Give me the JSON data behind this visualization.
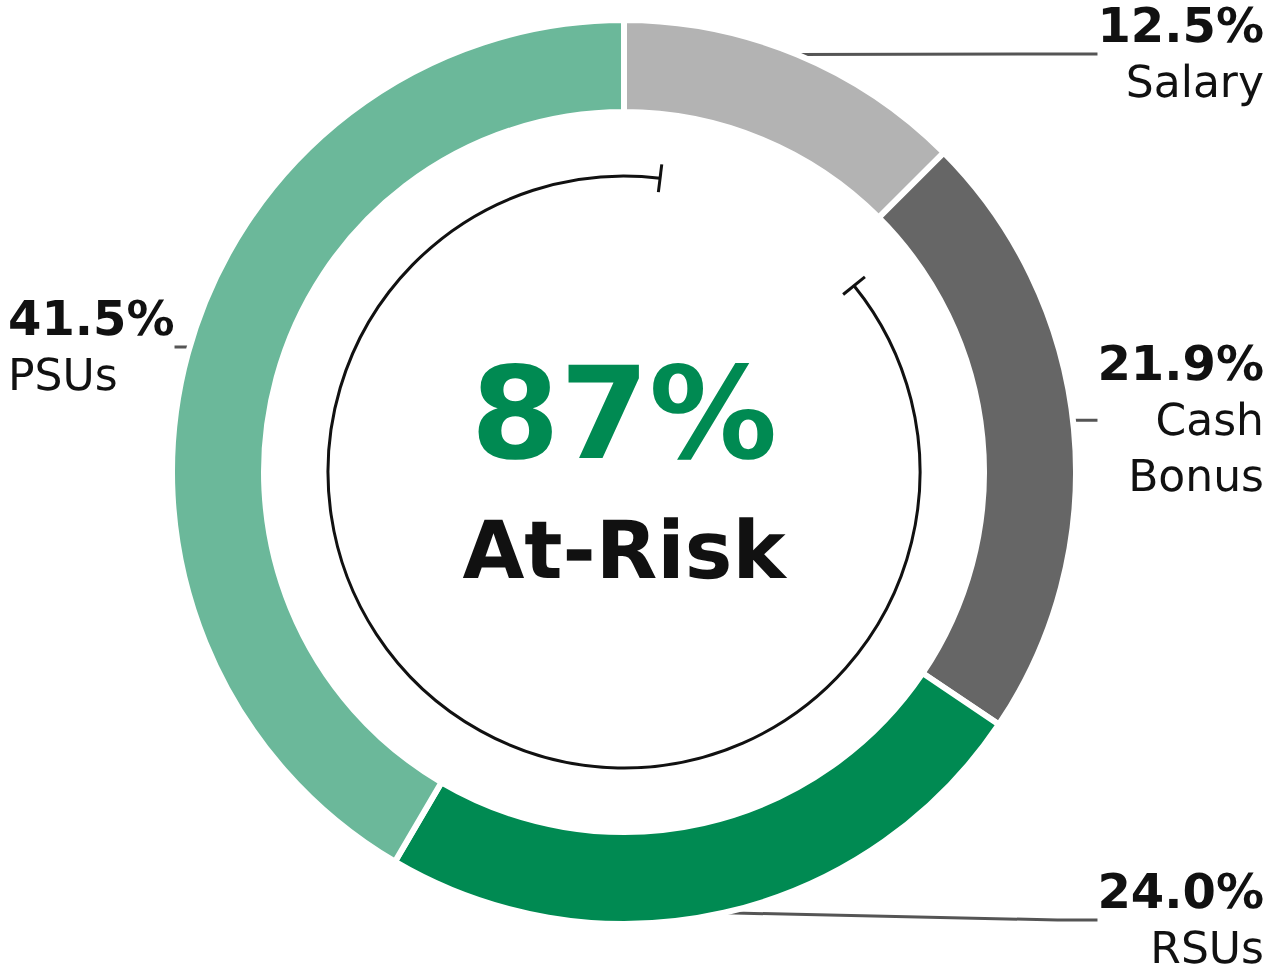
{
  "chart_data": {
    "type": "donut",
    "categories": [
      "Salary",
      "Cash Bonus",
      "RSUs",
      "PSUs"
    ],
    "values": [
      12.5,
      21.9,
      24.0,
      41.5
    ],
    "colors": [
      "#b3b3b3",
      "#666666",
      "#008a52",
      "#6bb89a"
    ],
    "value_labels": [
      "12.5%",
      "21.9%",
      "24.0%",
      "41.5%"
    ],
    "annotations": [
      "87%",
      "At-Risk"
    ],
    "legend": false
  }
}
